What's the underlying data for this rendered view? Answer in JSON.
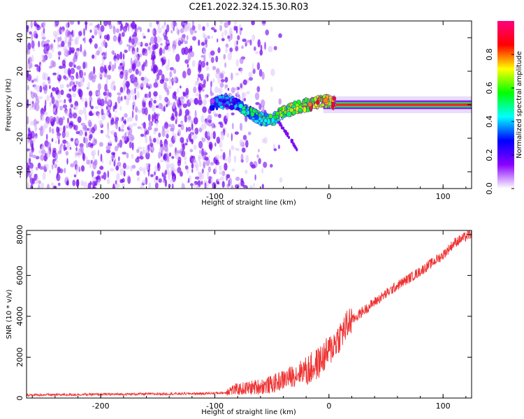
{
  "title": "C2E1.2022.324.15.30.R03",
  "chart_data": [
    {
      "type": "heatmap",
      "xlabel": "Height of straight line (km)",
      "ylabel": "Frequency (Hz)",
      "xlim": [
        -265,
        125
      ],
      "ylim": [
        -50,
        50
      ],
      "xticks": [
        -200,
        -100,
        0,
        100
      ],
      "yticks": [
        -40,
        -20,
        0,
        20,
        40
      ],
      "colorbar": {
        "label": "Normalized spectral amplitude",
        "range": [
          0,
          1
        ],
        "ticks": [
          "0.0",
          "0.2",
          "0.4",
          "0.6",
          "0.8"
        ],
        "colormap": [
          "#ffffff",
          "#8a00ff",
          "#0000ff",
          "#00ffff",
          "#00ff00",
          "#ffff00",
          "#ff0000",
          "#ff0080"
        ]
      },
      "features": [
        {
          "name": "noise",
          "x_range": [
            -265,
            -40
          ],
          "y_range": [
            -50,
            50
          ],
          "amplitude": 0.15
        },
        {
          "name": "signal",
          "x": [
            -103,
            -90,
            -80,
            -70,
            -60,
            -50,
            -40,
            -30,
            -20,
            -10,
            0,
            10,
            30,
            60,
            100,
            125
          ],
          "y": [
            1,
            2,
            0,
            -5,
            -8,
            -10,
            -4,
            -2,
            0,
            1,
            2,
            0,
            0,
            0,
            0,
            0
          ]
        },
        {
          "name": "branch",
          "x": [
            -45,
            -38,
            -32,
            -28
          ],
          "y": [
            -10,
            -16,
            -22,
            -28
          ]
        }
      ]
    },
    {
      "type": "line",
      "xlabel": "Height of straight line (km)",
      "ylabel": "SNR (10 * v/v)",
      "xlim": [
        -265,
        125
      ],
      "ylim": [
        0,
        8200
      ],
      "xticks": [
        -200,
        -100,
        0,
        100
      ],
      "yticks": [
        0,
        2000,
        4000,
        6000,
        8000
      ],
      "color": "#ee3333",
      "anchors": {
        "x": [
          -265,
          -110,
          -90,
          -70,
          -50,
          -40,
          -30,
          -20,
          -10,
          0,
          10,
          20,
          40,
          60,
          80,
          100,
          110,
          125
        ],
        "y": [
          150,
          220,
          260,
          350,
          480,
          700,
          900,
          1200,
          1600,
          2200,
          3000,
          3800,
          4700,
          5500,
          6200,
          7000,
          7600,
          8050
        ]
      }
    }
  ]
}
